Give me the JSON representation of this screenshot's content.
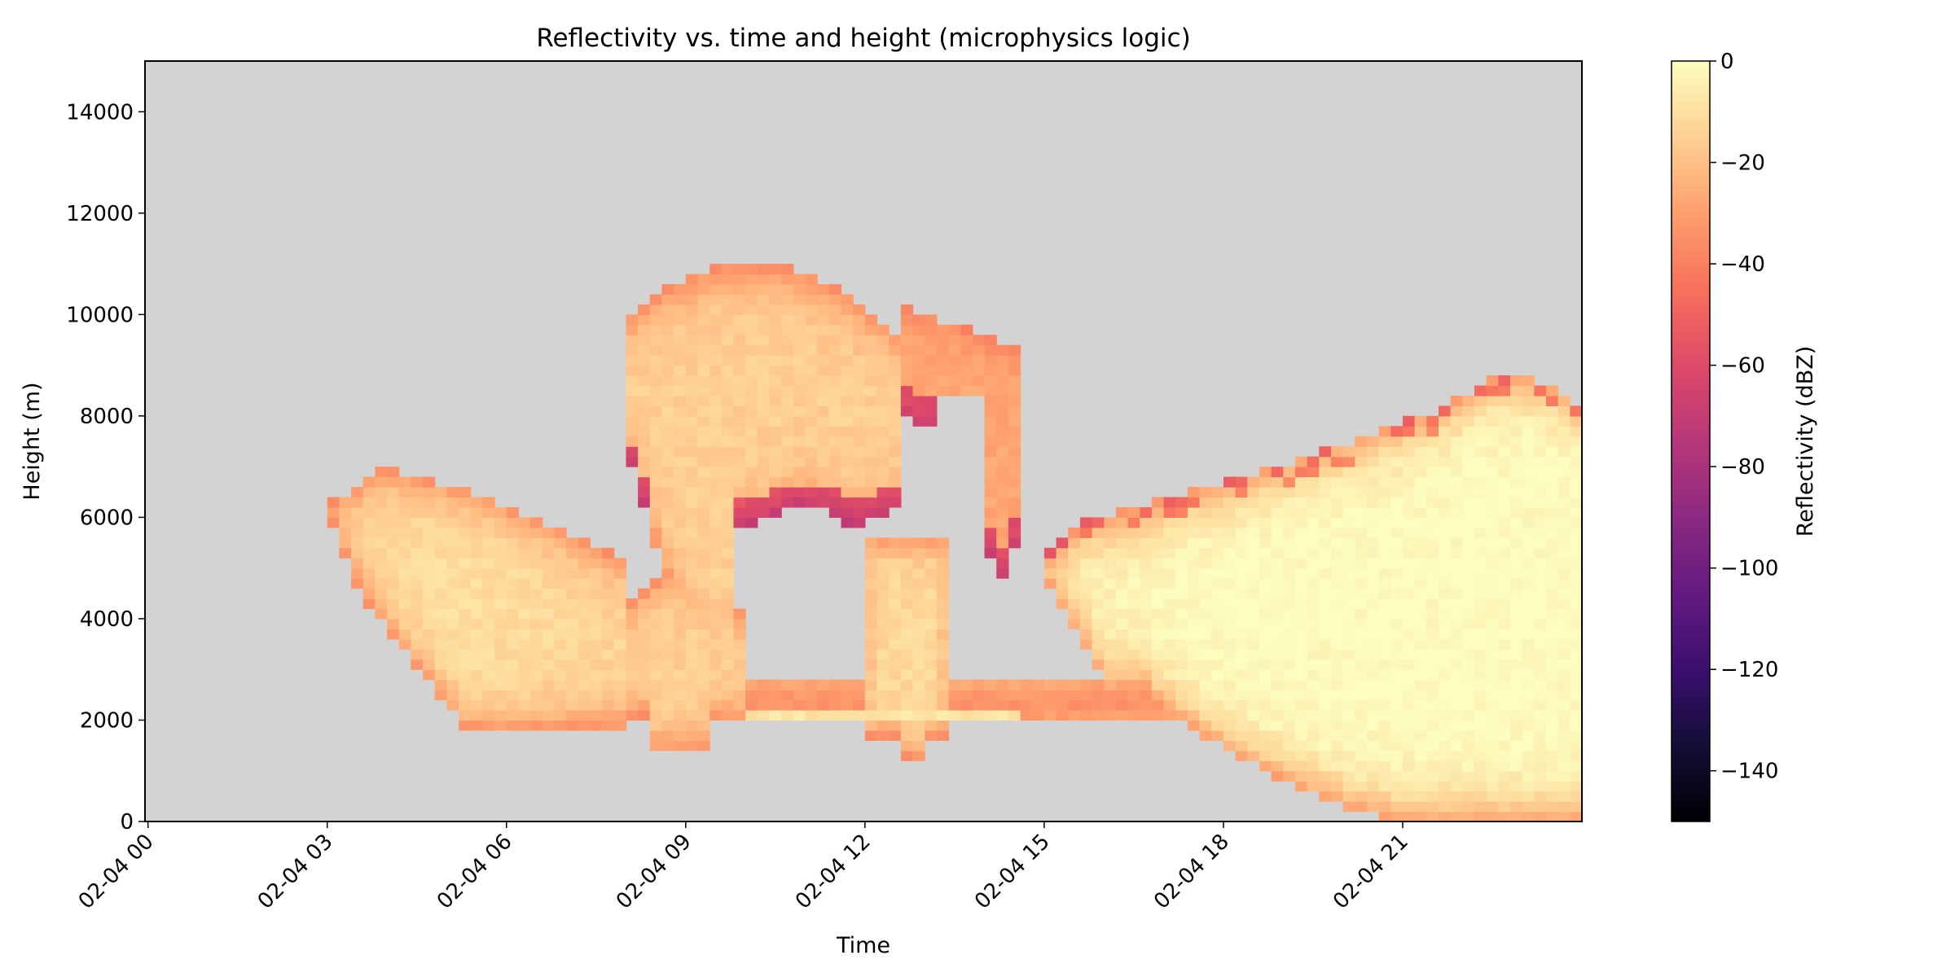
{
  "chart_data": {
    "type": "heatmap",
    "title": "Reflectivity vs. time and height (microphysics logic)",
    "xlabel": "Time",
    "ylabel": "Height (m)",
    "colorbar_label": "Reflectivity (dBZ)",
    "colormap": "magma",
    "background_color": "#d3d3d3",
    "x_ticks": [
      "02-04 00",
      "02-04 03",
      "02-04 06",
      "02-04 09",
      "02-04 12",
      "02-04 15",
      "02-04 18",
      "02-04 21"
    ],
    "x_tick_hours": [
      0,
      3,
      6,
      9,
      12,
      15,
      18,
      21
    ],
    "xlim_hours": [
      -0.05,
      24
    ],
    "y_ticks": [
      0,
      2000,
      4000,
      6000,
      8000,
      10000,
      12000,
      14000
    ],
    "ylim": [
      0,
      15000
    ],
    "colorbar_ticks": [
      0,
      -20,
      -40,
      -60,
      -80,
      -100,
      -120,
      -140
    ],
    "clim": [
      -150,
      0
    ],
    "grid": false,
    "cloud_regions": [
      {
        "name": "early",
        "time_start": 3.1,
        "time_end": 8.0,
        "top_peak": 7000,
        "base": 1800,
        "peak_dbz": -10
      },
      {
        "name": "mid-low",
        "time_start": 8.0,
        "time_end": 9.9,
        "top_peak": 5500,
        "base": 1400,
        "peak_dbz": -15
      },
      {
        "name": "tall",
        "time_start": 8.1,
        "time_end": 12.6,
        "top_peak": 11000,
        "base": 3000,
        "peak_dbz": -15
      },
      {
        "name": "column",
        "time_start": 12.0,
        "time_end": 13.4,
        "top_peak": 5600,
        "base": 1300,
        "peak_dbz": -12
      },
      {
        "name": "upper-right",
        "time_start": 12.6,
        "time_end": 14.6,
        "top_peak": 10200,
        "base": 4800,
        "peak_dbz": -28
      },
      {
        "name": "low-band",
        "time_start": 9.9,
        "time_end": 17.5,
        "top_peak": 2700,
        "base": 2000,
        "peak_dbz": -28
      },
      {
        "name": "late",
        "time_start": 15.0,
        "time_end": 24.0,
        "top_peak": 9000,
        "base": 0,
        "peak_dbz": 0
      }
    ]
  }
}
